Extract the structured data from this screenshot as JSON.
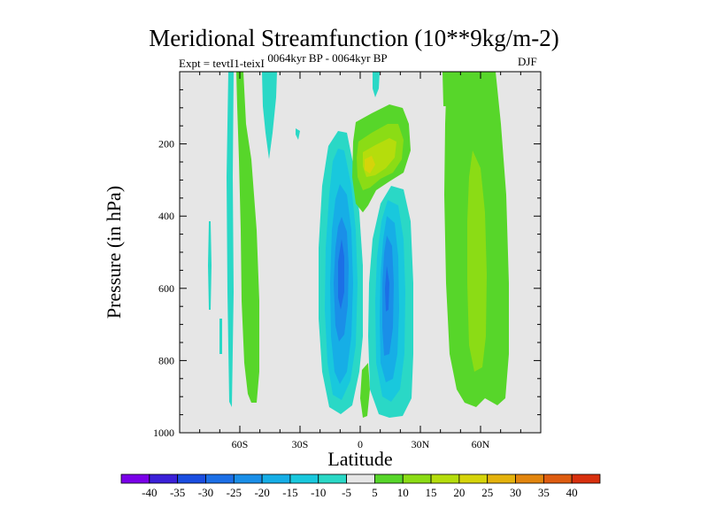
{
  "chart_data": {
    "type": "contour",
    "title": "Meridional Streamfunction (10**9kg/m-2)",
    "subtitle": "0064kyr BP - 0064kyr BP",
    "experiment_label": "Expt = tevtI1-teixI",
    "season": "DJF",
    "xlabel": "Latitude",
    "ylabel": "Pressure (in hPa)",
    "xlim": [
      -90,
      90
    ],
    "ylim": [
      1000,
      0
    ],
    "x_ticks": [
      {
        "value": -60,
        "label": "60S"
      },
      {
        "value": -30,
        "label": "30S"
      },
      {
        "value": 0,
        "label": "0"
      },
      {
        "value": 30,
        "label": "30N"
      },
      {
        "value": 60,
        "label": "60N"
      }
    ],
    "y_ticks": [
      {
        "value": 200,
        "label": "200"
      },
      {
        "value": 400,
        "label": "400"
      },
      {
        "value": 600,
        "label": "600"
      },
      {
        "value": 800,
        "label": "800"
      },
      {
        "value": 1000,
        "label": "1000"
      }
    ],
    "contour_levels": [
      "-40",
      "-35",
      "-30",
      "-25",
      "-20",
      "-15",
      "-10",
      "-5",
      "5",
      "10",
      "15",
      "20",
      "25",
      "30",
      "35",
      "40"
    ],
    "colorbar_colors": [
      "#7a00e8",
      "#3b20d8",
      "#1a4de0",
      "#1c6fe6",
      "#1a8fe8",
      "#16aee6",
      "#19c8dd",
      "#2ad8c6",
      "#e6e6e6",
      "#57d62a",
      "#8bdc15",
      "#b5dd0c",
      "#d6d40a",
      "#e4b20c",
      "#e2850e",
      "#de5c10",
      "#d8300e"
    ],
    "background_color": "#e6e6e6",
    "features": [
      {
        "name": "equatorial-negative-cell",
        "lat_range": [
          -20,
          2
        ],
        "pressure_range": [
          170,
          930
        ],
        "min_value": -25
      },
      {
        "name": "equatorial-positive-upper-cell",
        "lat_range": [
          -3,
          25
        ],
        "pressure_range": [
          80,
          400
        ],
        "max_value": 20
      },
      {
        "name": "nh-tropical-negative-cell",
        "lat_range": [
          5,
          25
        ],
        "pressure_range": [
          350,
          960
        ],
        "min_value": -25
      },
      {
        "name": "nh-midlatitude-positive-cell",
        "lat_range": [
          40,
          75
        ],
        "pressure_range": [
          0,
          950
        ],
        "max_value": 15
      },
      {
        "name": "sh-midlatitude-positive-band",
        "lat_range": [
          -67,
          -58
        ],
        "pressure_range": [
          0,
          930
        ],
        "max_value": 5
      },
      {
        "name": "sh-negative-bands",
        "lat_range": [
          -75,
          -45
        ],
        "pressure_range": [
          0,
          950
        ],
        "min_value": -5
      }
    ]
  }
}
